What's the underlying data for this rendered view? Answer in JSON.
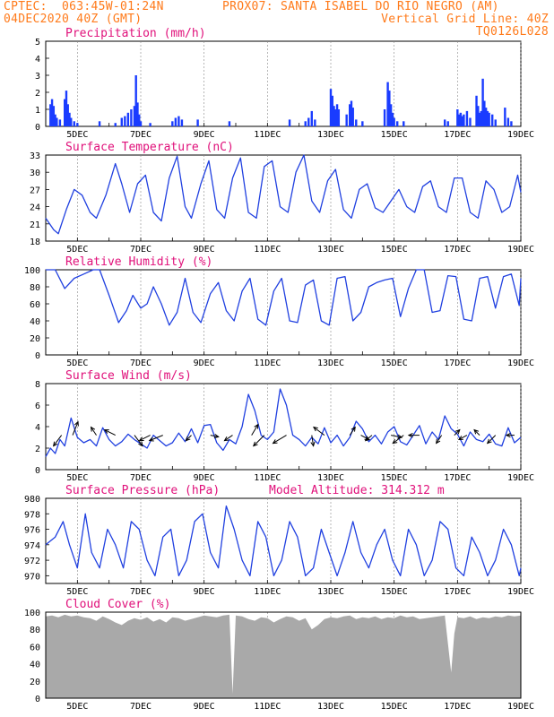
{
  "header": {
    "line1_left": "CPTEC:  063:45W-01:24N",
    "line1_right": "PROX07: SANTA ISABEL DO RIO NEGRO (AM)",
    "line2_left": "04DEC2020 40Z (GMT)",
    "line2_right": "Vertical Grid Line: 40Z",
    "line3_right": "TQ0126L028"
  },
  "colors": {
    "header_text": "#ff7a1a",
    "title_text": "#e0107a",
    "series_line": "#2040e0",
    "precip_bars": "#1a3cff",
    "cloud_fill": "#a9a9a9",
    "wind_arrows": "#000000"
  },
  "chart_data": [
    {
      "type": "bar",
      "title": "Precipitation (mm/h)",
      "ylim": [
        0,
        5
      ],
      "yticks": [
        0,
        1,
        2,
        3,
        4,
        5
      ],
      "x_labels": [
        "5DEC",
        "7DEC",
        "9DEC",
        "11DEC",
        "13DEC",
        "15DEC",
        "17DEC",
        "19DEC"
      ],
      "x_range_days": [
        4.0,
        19.0
      ],
      "values_by_day": [
        [
          4.15,
          1.3
        ],
        [
          4.2,
          1.6
        ],
        [
          4.25,
          1.2
        ],
        [
          4.3,
          0.7
        ],
        [
          4.35,
          0.5
        ],
        [
          4.45,
          0.4
        ],
        [
          4.6,
          1.6
        ],
        [
          4.65,
          2.1
        ],
        [
          4.7,
          1.3
        ],
        [
          4.75,
          0.8
        ],
        [
          4.8,
          0.5
        ],
        [
          4.9,
          0.3
        ],
        [
          5.0,
          0.2
        ],
        [
          5.7,
          0.3
        ],
        [
          6.2,
          0.2
        ],
        [
          6.4,
          0.5
        ],
        [
          6.5,
          0.6
        ],
        [
          6.6,
          0.8
        ],
        [
          6.7,
          1.0
        ],
        [
          6.8,
          1.2
        ],
        [
          6.85,
          3.0
        ],
        [
          6.9,
          1.4
        ],
        [
          6.95,
          0.7
        ],
        [
          7.0,
          0.3
        ],
        [
          7.3,
          0.2
        ],
        [
          8.0,
          0.3
        ],
        [
          8.1,
          0.5
        ],
        [
          8.2,
          0.6
        ],
        [
          8.3,
          0.4
        ],
        [
          8.8,
          0.4
        ],
        [
          9.8,
          0.3
        ],
        [
          11.7,
          0.4
        ],
        [
          12.2,
          0.3
        ],
        [
          12.3,
          0.5
        ],
        [
          12.4,
          0.9
        ],
        [
          12.5,
          0.4
        ],
        [
          13.0,
          2.2
        ],
        [
          13.05,
          1.8
        ],
        [
          13.1,
          1.2
        ],
        [
          13.15,
          1.0
        ],
        [
          13.2,
          1.3
        ],
        [
          13.25,
          1.0
        ],
        [
          13.5,
          0.7
        ],
        [
          13.6,
          1.3
        ],
        [
          13.65,
          1.5
        ],
        [
          13.7,
          1.1
        ],
        [
          13.8,
          0.4
        ],
        [
          14.0,
          0.3
        ],
        [
          14.7,
          1.0
        ],
        [
          14.8,
          2.6
        ],
        [
          14.85,
          2.1
        ],
        [
          14.9,
          1.3
        ],
        [
          14.95,
          0.8
        ],
        [
          15.0,
          0.5
        ],
        [
          15.1,
          0.3
        ],
        [
          15.3,
          0.3
        ],
        [
          16.6,
          0.4
        ],
        [
          16.7,
          0.3
        ],
        [
          17.0,
          1.0
        ],
        [
          17.05,
          0.7
        ],
        [
          17.1,
          0.8
        ],
        [
          17.15,
          0.6
        ],
        [
          17.2,
          0.7
        ],
        [
          17.3,
          0.9
        ],
        [
          17.4,
          0.5
        ],
        [
          17.6,
          1.8
        ],
        [
          17.65,
          1.2
        ],
        [
          17.7,
          0.8
        ],
        [
          17.75,
          0.9
        ],
        [
          17.8,
          2.8
        ],
        [
          17.85,
          1.5
        ],
        [
          17.9,
          1.1
        ],
        [
          17.95,
          0.9
        ],
        [
          18.0,
          0.8
        ],
        [
          18.1,
          0.7
        ],
        [
          18.2,
          0.4
        ],
        [
          18.5,
          1.1
        ],
        [
          18.6,
          0.5
        ],
        [
          18.7,
          0.3
        ]
      ]
    },
    {
      "type": "line",
      "title": "Surface Temperature (nC)",
      "ylim": [
        18,
        33
      ],
      "yticks": [
        18,
        21,
        24,
        27,
        30,
        33
      ],
      "x_labels": [
        "5DEC",
        "7DEC",
        "9DEC",
        "11DEC",
        "13DEC",
        "15DEC",
        "17DEC",
        "19DEC"
      ],
      "x_range_days": [
        4.0,
        19.0
      ],
      "x_days": [
        4.0,
        4.25,
        4.4,
        4.65,
        4.9,
        5.15,
        5.4,
        5.6,
        5.9,
        6.2,
        6.4,
        6.65,
        6.9,
        7.15,
        7.4,
        7.65,
        7.9,
        8.15,
        8.4,
        8.6,
        8.9,
        9.15,
        9.4,
        9.65,
        9.9,
        10.15,
        10.4,
        10.65,
        10.9,
        11.15,
        11.4,
        11.65,
        11.9,
        12.15,
        12.4,
        12.65,
        12.9,
        13.15,
        13.4,
        13.65,
        13.9,
        14.15,
        14.4,
        14.65,
        14.9,
        15.15,
        15.4,
        15.65,
        15.9,
        16.15,
        16.4,
        16.65,
        16.9,
        17.15,
        17.4,
        17.65,
        17.9,
        18.15,
        18.4,
        18.65,
        18.9,
        19.0
      ],
      "values": [
        22,
        20,
        19.3,
        23.5,
        27,
        26,
        23,
        22,
        26,
        31.5,
        28,
        23,
        28,
        29.5,
        23,
        21.5,
        29,
        32.8,
        24,
        22,
        28,
        32,
        23.5,
        22,
        29,
        32.5,
        23,
        22,
        31,
        32,
        24,
        23,
        30,
        33,
        25,
        23,
        28.5,
        30.5,
        23.5,
        22,
        27,
        28,
        23.8,
        23,
        25,
        27,
        24,
        23,
        27.5,
        28.5,
        24,
        23,
        29,
        29,
        23,
        22,
        28.5,
        27,
        23,
        24,
        29.5,
        26.5
      ]
    },
    {
      "type": "line",
      "title": "Relative Humidity (%)",
      "ylim": [
        0,
        100
      ],
      "yticks": [
        0,
        20,
        40,
        60,
        80,
        100
      ],
      "x_labels": [
        "5DEC",
        "7DEC",
        "9DEC",
        "11DEC",
        "13DEC",
        "15DEC",
        "17DEC",
        "19DEC"
      ],
      "x_range_days": [
        4.0,
        19.0
      ],
      "x_days": [
        4.0,
        4.3,
        4.6,
        4.9,
        5.2,
        5.5,
        5.7,
        6.0,
        6.3,
        6.55,
        6.75,
        7.0,
        7.2,
        7.4,
        7.65,
        7.9,
        8.15,
        8.4,
        8.65,
        8.9,
        9.2,
        9.45,
        9.7,
        9.95,
        10.2,
        10.45,
        10.7,
        10.95,
        11.2,
        11.45,
        11.7,
        11.95,
        12.2,
        12.45,
        12.7,
        12.95,
        13.2,
        13.45,
        13.7,
        13.95,
        14.2,
        14.45,
        14.7,
        14.95,
        15.2,
        15.45,
        15.7,
        15.95,
        16.2,
        16.45,
        16.7,
        16.95,
        17.2,
        17.45,
        17.7,
        17.95,
        18.2,
        18.45,
        18.7,
        18.95,
        19.0
      ],
      "values": [
        100,
        100,
        78,
        90,
        95,
        100,
        100,
        70,
        38,
        52,
        70,
        55,
        60,
        80,
        60,
        35,
        50,
        90,
        50,
        38,
        72,
        85,
        52,
        40,
        75,
        90,
        42,
        35,
        75,
        90,
        40,
        38,
        82,
        88,
        40,
        35,
        90,
        92,
        40,
        50,
        80,
        85,
        88,
        90,
        45,
        78,
        100,
        100,
        50,
        52,
        93,
        92,
        42,
        40,
        90,
        92,
        55,
        92,
        95,
        58,
        90
      ]
    },
    {
      "type": "line",
      "title": "Surface Wind (m/s)",
      "ylim": [
        0,
        8
      ],
      "yticks": [
        0,
        2,
        4,
        6,
        8
      ],
      "x_labels": [
        "5DEC",
        "7DEC",
        "9DEC",
        "11DEC",
        "13DEC",
        "15DEC",
        "17DEC",
        "19DEC"
      ],
      "x_range_days": [
        4.0,
        19.0
      ],
      "x_days": [
        4.0,
        4.15,
        4.3,
        4.45,
        4.6,
        4.8,
        5.0,
        5.2,
        5.4,
        5.6,
        5.8,
        6.0,
        6.2,
        6.4,
        6.6,
        6.8,
        7.0,
        7.2,
        7.4,
        7.6,
        7.8,
        8.0,
        8.2,
        8.4,
        8.6,
        8.8,
        9.0,
        9.2,
        9.4,
        9.6,
        9.8,
        10.0,
        10.2,
        10.4,
        10.6,
        10.8,
        11.0,
        11.2,
        11.4,
        11.6,
        11.8,
        12.0,
        12.2,
        12.4,
        12.6,
        12.8,
        13.0,
        13.2,
        13.4,
        13.6,
        13.8,
        14.0,
        14.2,
        14.4,
        14.6,
        14.8,
        15.0,
        15.2,
        15.4,
        15.6,
        15.8,
        16.0,
        16.2,
        16.4,
        16.6,
        16.8,
        17.0,
        17.2,
        17.4,
        17.6,
        17.8,
        18.0,
        18.2,
        18.4,
        18.6,
        18.8,
        19.0
      ],
      "values": [
        1.2,
        2.0,
        1.5,
        2.8,
        2.2,
        4.8,
        3.0,
        2.5,
        2.8,
        2.2,
        3.9,
        2.8,
        2.2,
        2.6,
        3.3,
        2.8,
        2.4,
        2.0,
        3.2,
        2.7,
        2.2,
        2.5,
        3.4,
        2.6,
        3.8,
        2.5,
        4.1,
        4.2,
        2.5,
        1.8,
        2.8,
        2.4,
        4.0,
        7.0,
        5.5,
        3.2,
        2.8,
        3.5,
        7.5,
        6.0,
        3.2,
        2.8,
        2.2,
        3.0,
        2.4,
        3.9,
        2.5,
        3.2,
        2.2,
        3.0,
        4.5,
        3.8,
        2.6,
        3.2,
        2.4,
        3.5,
        4.0,
        2.6,
        2.3,
        3.2,
        4.1,
        2.4,
        3.5,
        2.8,
        5.0,
        3.8,
        3.3,
        2.2,
        3.5,
        2.8,
        2.6,
        3.3,
        2.4,
        2.2,
        3.9,
        2.5,
        3.0
      ]
    },
    {
      "type": "line",
      "title": "Surface Pressure (hPa)",
      "annotation": "Model Altitude: 314.312 m",
      "ylim": [
        969,
        980
      ],
      "yticks": [
        970,
        972,
        974,
        976,
        978,
        980
      ],
      "x_labels": [
        "5DEC",
        "7DEC",
        "9DEC",
        "11DEC",
        "13DEC",
        "15DEC",
        "17DEC",
        "19DEC"
      ],
      "x_range_days": [
        4.0,
        19.0
      ],
      "x_days": [
        4.0,
        4.3,
        4.55,
        4.75,
        5.0,
        5.25,
        5.45,
        5.7,
        5.95,
        6.2,
        6.45,
        6.7,
        6.95,
        7.2,
        7.45,
        7.7,
        7.95,
        8.2,
        8.45,
        8.7,
        8.95,
        9.2,
        9.45,
        9.7,
        9.95,
        10.2,
        10.45,
        10.7,
        10.95,
        11.2,
        11.45,
        11.7,
        11.95,
        12.2,
        12.45,
        12.7,
        12.95,
        13.2,
        13.45,
        13.7,
        13.95,
        14.2,
        14.45,
        14.7,
        14.95,
        15.2,
        15.45,
        15.7,
        15.95,
        16.2,
        16.45,
        16.7,
        16.95,
        17.2,
        17.45,
        17.7,
        17.95,
        18.2,
        18.45,
        18.7,
        18.95,
        19.0
      ],
      "values": [
        974,
        975,
        977,
        974,
        971,
        978,
        973,
        971,
        976,
        974,
        971,
        977,
        976,
        972,
        970,
        975,
        976,
        970,
        972,
        977,
        978,
        973,
        971,
        979,
        976,
        972,
        970,
        977,
        975,
        970,
        972,
        977,
        975,
        970,
        971,
        976,
        973,
        970,
        973,
        977,
        973,
        971,
        974,
        976,
        972,
        970,
        976,
        974,
        970,
        972,
        977,
        976,
        971,
        970,
        975,
        973,
        970,
        972,
        976,
        974,
        970,
        971
      ]
    },
    {
      "type": "area",
      "title": "Cloud Cover (%)",
      "ylim": [
        0,
        100
      ],
      "yticks": [
        0,
        20,
        40,
        60,
        80,
        100
      ],
      "x_labels": [
        "5DEC",
        "7DEC",
        "9DEC",
        "11DEC",
        "13DEC",
        "15DEC",
        "17DEC",
        "19DEC"
      ],
      "x_range_days": [
        4.0,
        19.0
      ],
      "x_days": [
        4.0,
        4.2,
        4.4,
        4.6,
        4.8,
        5.0,
        5.2,
        5.4,
        5.6,
        5.8,
        6.0,
        6.2,
        6.4,
        6.6,
        6.8,
        7.0,
        7.2,
        7.4,
        7.6,
        7.8,
        8.0,
        8.2,
        8.4,
        8.6,
        8.8,
        9.0,
        9.2,
        9.4,
        9.6,
        9.8,
        9.9,
        10.0,
        10.2,
        10.4,
        10.6,
        10.8,
        11.0,
        11.2,
        11.4,
        11.6,
        11.8,
        12.0,
        12.2,
        12.4,
        12.6,
        12.8,
        13.0,
        13.2,
        13.4,
        13.6,
        13.8,
        14.0,
        14.2,
        14.4,
        14.6,
        14.8,
        15.0,
        15.2,
        15.4,
        15.6,
        15.8,
        16.0,
        16.2,
        16.4,
        16.6,
        16.8,
        16.9,
        17.0,
        17.2,
        17.4,
        17.6,
        17.8,
        18.0,
        18.2,
        18.4,
        18.6,
        18.8,
        19.0
      ],
      "values": [
        95,
        96,
        94,
        97,
        95,
        96,
        94,
        93,
        90,
        95,
        92,
        88,
        85,
        90,
        93,
        91,
        94,
        89,
        92,
        88,
        94,
        93,
        90,
        92,
        94,
        96,
        95,
        94,
        96,
        97,
        5,
        96,
        95,
        92,
        90,
        94,
        93,
        88,
        92,
        95,
        94,
        90,
        93,
        80,
        85,
        92,
        94,
        93,
        95,
        96,
        92,
        94,
        93,
        95,
        92,
        94,
        93,
        96,
        94,
        95,
        92,
        93,
        94,
        95,
        96,
        30,
        75,
        94,
        93,
        95,
        92,
        94,
        93,
        95,
        94,
        96,
        95,
        96
      ]
    }
  ],
  "wind_arrows": [
    {
      "day": 4.5,
      "u": -1.5,
      "v": -2
    },
    {
      "day": 4.85,
      "u": 1,
      "v": 2.5
    },
    {
      "day": 5.6,
      "u": -1,
      "v": 1.5
    },
    {
      "day": 6.2,
      "u": -2,
      "v": 1
    },
    {
      "day": 6.8,
      "u": 1.5,
      "v": -2
    },
    {
      "day": 7.3,
      "u": -2,
      "v": -1
    },
    {
      "day": 7.7,
      "u": -2.5,
      "v": -1
    },
    {
      "day": 8.6,
      "u": -1,
      "v": -1
    },
    {
      "day": 9.2,
      "u": 1.5,
      "v": -0.3
    },
    {
      "day": 9.9,
      "u": -1.5,
      "v": -1
    },
    {
      "day": 10.5,
      "u": 1.2,
      "v": 2
    },
    {
      "day": 10.9,
      "u": -2,
      "v": -2
    },
    {
      "day": 11.6,
      "u": -2.5,
      "v": -1.5
    },
    {
      "day": 12.4,
      "u": 0.3,
      "v": -2
    },
    {
      "day": 12.8,
      "u": -2,
      "v": 1.5
    },
    {
      "day": 13.6,
      "u": 1,
      "v": 1.5
    },
    {
      "day": 13.95,
      "u": 1.5,
      "v": -0.8
    },
    {
      "day": 14.3,
      "u": -1.2,
      "v": -1
    },
    {
      "day": 14.9,
      "u": 2,
      "v": -0.4
    },
    {
      "day": 15.3,
      "u": -2,
      "v": -1.5
    },
    {
      "day": 15.8,
      "u": -2,
      "v": 0
    },
    {
      "day": 16.5,
      "u": -1,
      "v": -1.5
    },
    {
      "day": 16.9,
      "u": 1,
      "v": 1
    },
    {
      "day": 17.3,
      "u": -1.5,
      "v": -0.8
    },
    {
      "day": 17.7,
      "u": -1,
      "v": 1
    },
    {
      "day": 18.2,
      "u": -1.5,
      "v": -1.5
    },
    {
      "day": 18.8,
      "u": -1.5,
      "v": 0
    }
  ]
}
